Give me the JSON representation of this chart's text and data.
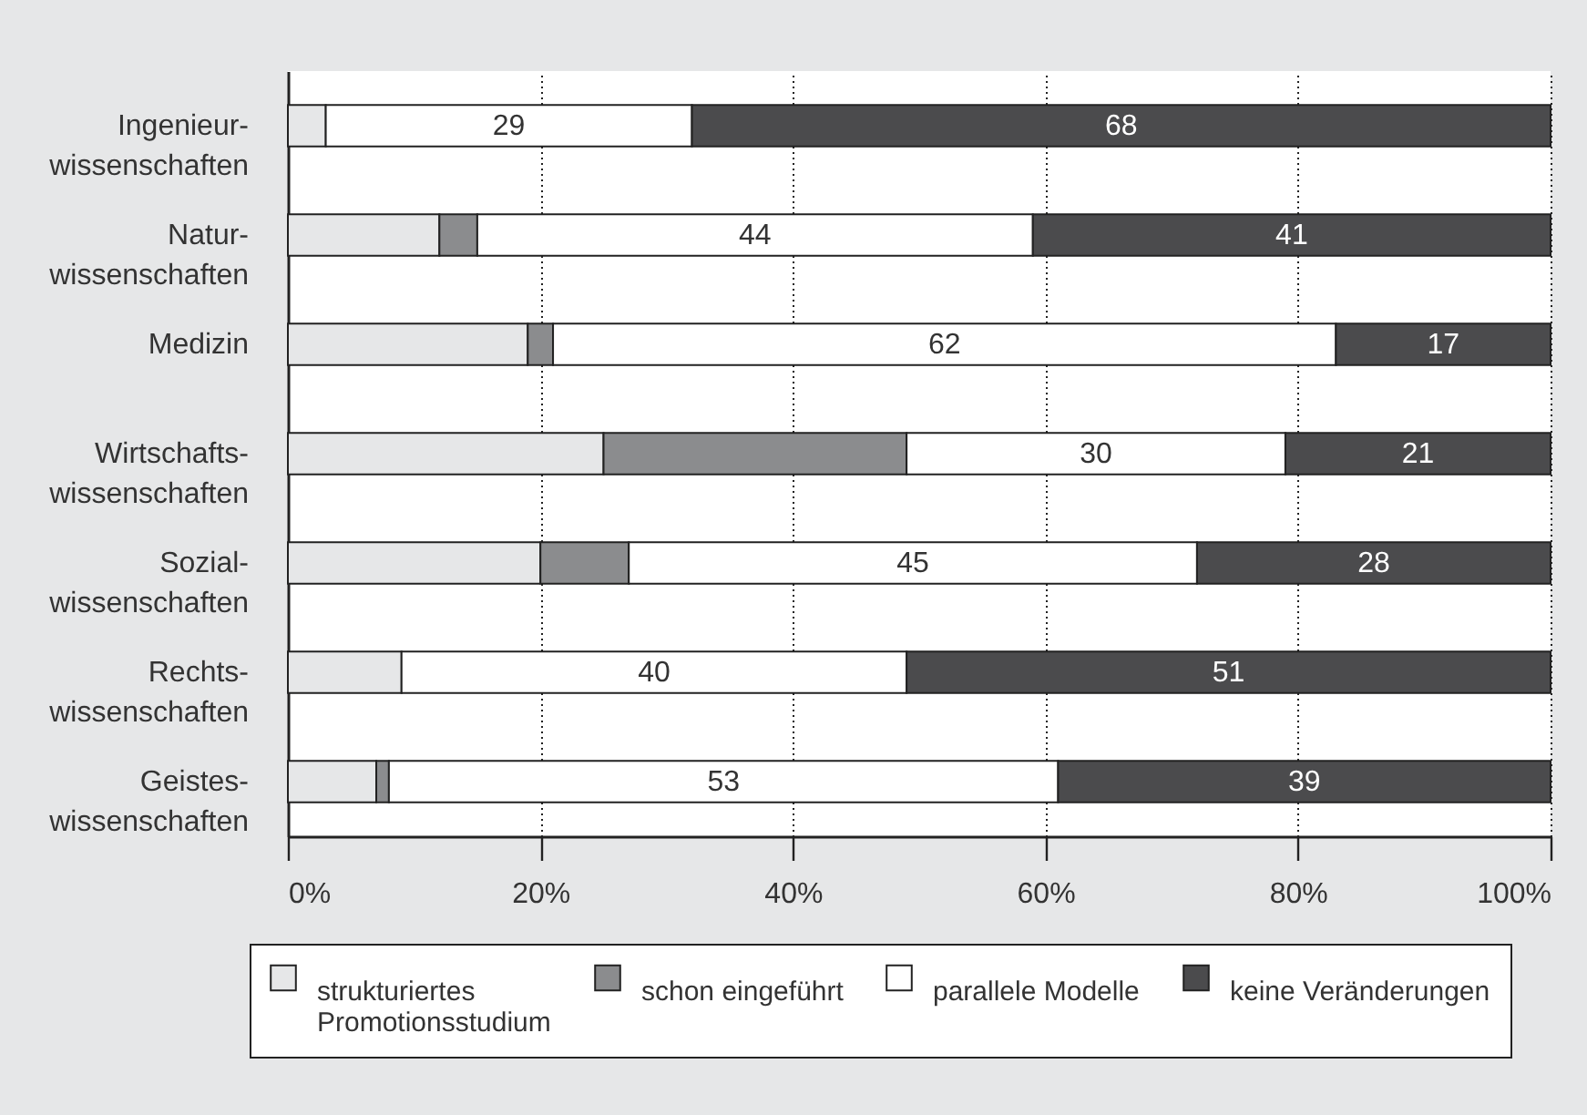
{
  "chart_data": {
    "type": "bar",
    "orientation": "horizontal",
    "stacked": true,
    "categories": [
      "Ingenieur-\nwissenschaften",
      "Natur-\nwissenschaften",
      "Medizin",
      "Wirtschafts-\nwissenschaften",
      "Sozial-\nwissenschaften",
      "Rechts-\nwissenschaften",
      "Geistes-\nwissenschaften"
    ],
    "series": [
      {
        "name": "strukturiertes\nPromotionsstudium",
        "color": "#e6e7e8",
        "values": [
          3,
          12,
          19,
          25,
          20,
          9,
          7
        ]
      },
      {
        "name": "schon eingeführt",
        "color": "#8b8c8e",
        "values": [
          null,
          3,
          2,
          24,
          7,
          null,
          1
        ]
      },
      {
        "name": "parallele Modelle",
        "color": "#ffffff",
        "values": [
          29,
          44,
          62,
          30,
          45,
          40,
          53
        ],
        "value_labels": [
          "29",
          "44",
          "62",
          "30",
          "45",
          "40",
          "53"
        ]
      },
      {
        "name": "keine Veränderungen",
        "color": "#4b4b4d",
        "values": [
          68,
          41,
          17,
          21,
          28,
          51,
          39
        ],
        "value_labels": [
          "68",
          "41",
          "17",
          "21",
          "28",
          "51",
          "39"
        ]
      }
    ],
    "xlim": [
      0,
      100
    ],
    "xticks": [
      {
        "value": 0,
        "label": "0%"
      },
      {
        "value": 20,
        "label": "20%"
      },
      {
        "value": 40,
        "label": "40%"
      },
      {
        "value": 60,
        "label": "60%"
      },
      {
        "value": 80,
        "label": "80%"
      },
      {
        "value": 100,
        "label": "100%"
      }
    ],
    "grid": "x",
    "legend": "bottom"
  }
}
